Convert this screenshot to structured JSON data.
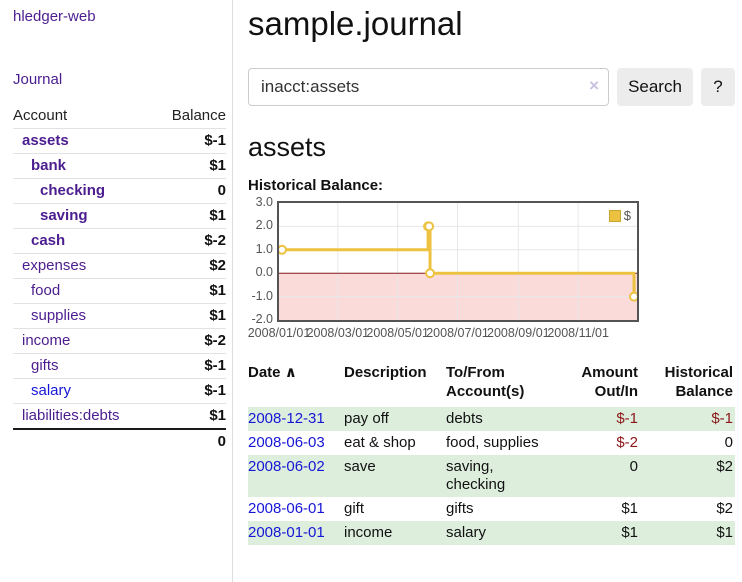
{
  "app": {
    "brand": "hledger-web",
    "nav": {
      "journal": "Journal"
    }
  },
  "sidebar": {
    "account_header": "Account",
    "balance_header": "Balance",
    "accounts": [
      {
        "name": "assets",
        "depth": 1,
        "bold": true,
        "blue": false,
        "balance": "$-1",
        "tone": "neg-strong"
      },
      {
        "name": "bank",
        "depth": 2,
        "bold": true,
        "blue": false,
        "balance": "$1",
        "tone": ""
      },
      {
        "name": "checking",
        "depth": 3,
        "bold": true,
        "blue": false,
        "balance": "0",
        "tone": ""
      },
      {
        "name": "saving",
        "depth": 3,
        "bold": true,
        "blue": false,
        "balance": "$1",
        "tone": ""
      },
      {
        "name": "cash",
        "depth": 2,
        "bold": true,
        "blue": false,
        "balance": "$-2",
        "tone": "neg-strong"
      },
      {
        "name": "expenses",
        "depth": 1,
        "bold": false,
        "blue": false,
        "balance": "$2",
        "tone": ""
      },
      {
        "name": "food",
        "depth": 2,
        "bold": false,
        "blue": false,
        "balance": "$1",
        "tone": ""
      },
      {
        "name": "supplies",
        "depth": 2,
        "bold": false,
        "blue": false,
        "balance": "$1",
        "tone": ""
      },
      {
        "name": "income",
        "depth": 1,
        "bold": false,
        "blue": false,
        "balance": "$-2",
        "tone": "neg-soft"
      },
      {
        "name": "gifts",
        "depth": 2,
        "bold": false,
        "blue": false,
        "balance": "$-1",
        "tone": "neg-soft"
      },
      {
        "name": "salary",
        "depth": 2,
        "bold": false,
        "blue": true,
        "balance": "$-1",
        "tone": "neg-soft"
      },
      {
        "name": "liabilities:debts",
        "depth": 1,
        "bold": false,
        "blue": false,
        "balance": "$1",
        "tone": ""
      }
    ],
    "total": "0"
  },
  "main": {
    "title": "sample.journal",
    "search": {
      "value": "inacct:assets",
      "clear": "×",
      "search_button": "Search",
      "help_button": "?"
    },
    "heading": "assets",
    "chart_title": "Historical Balance:"
  },
  "chart_data": {
    "type": "line",
    "step": true,
    "title": "Historical Balance",
    "x_start": "2008-01-01",
    "x_end": "2008-12-31",
    "ylim": [
      -2,
      3
    ],
    "series": [
      {
        "name": "$",
        "color": "#edc240",
        "points": [
          [
            "2008-01-01",
            1
          ],
          [
            "2008-06-01",
            2
          ],
          [
            "2008-06-02",
            2
          ],
          [
            "2008-06-03",
            0
          ],
          [
            "2008-12-31",
            -1
          ]
        ]
      }
    ],
    "x_tick_labels": [
      "2008/01/01",
      "2008/03/01",
      "2008/05/01",
      "2008/07/01",
      "2008/09/01",
      "2008/11/01"
    ],
    "y_tick_labels": [
      "3.0",
      "2.0",
      "1.0",
      "0.0",
      "-1.0",
      "-2.0"
    ],
    "legend": {
      "label": "$",
      "position": "top-right"
    },
    "grid": true,
    "negative_fill": "#fbdada",
    "zero_line": "#8b1a1a",
    "grid_color": "#e7e7e7"
  },
  "register": {
    "headers": {
      "date": "Date",
      "sort_icon": "∧",
      "description": "Description",
      "accounts": "To/From Account(s)",
      "amount": "Amount Out/In",
      "balance": "Historical Balance"
    },
    "rows": [
      {
        "date": "2008-12-31",
        "description": "pay off",
        "accounts": "debts",
        "amount": "$-1",
        "amount_negative": true,
        "balance": "$-1",
        "balance_negative": true
      },
      {
        "date": "2008-06-03",
        "description": "eat & shop",
        "accounts": "food, supplies",
        "amount": "$-2",
        "amount_negative": true,
        "balance": "0",
        "balance_negative": false
      },
      {
        "date": "2008-06-02",
        "description": "save",
        "accounts": "saving, checking",
        "amount": "0",
        "amount_negative": false,
        "balance": "$2",
        "balance_negative": false
      },
      {
        "date": "2008-06-01",
        "description": "gift",
        "accounts": "gifts",
        "amount": "$1",
        "amount_negative": false,
        "balance": "$2",
        "balance_negative": false
      },
      {
        "date": "2008-01-01",
        "description": "income",
        "accounts": "salary",
        "amount": "$1",
        "amount_negative": false,
        "balance": "$1",
        "balance_negative": false
      }
    ]
  }
}
